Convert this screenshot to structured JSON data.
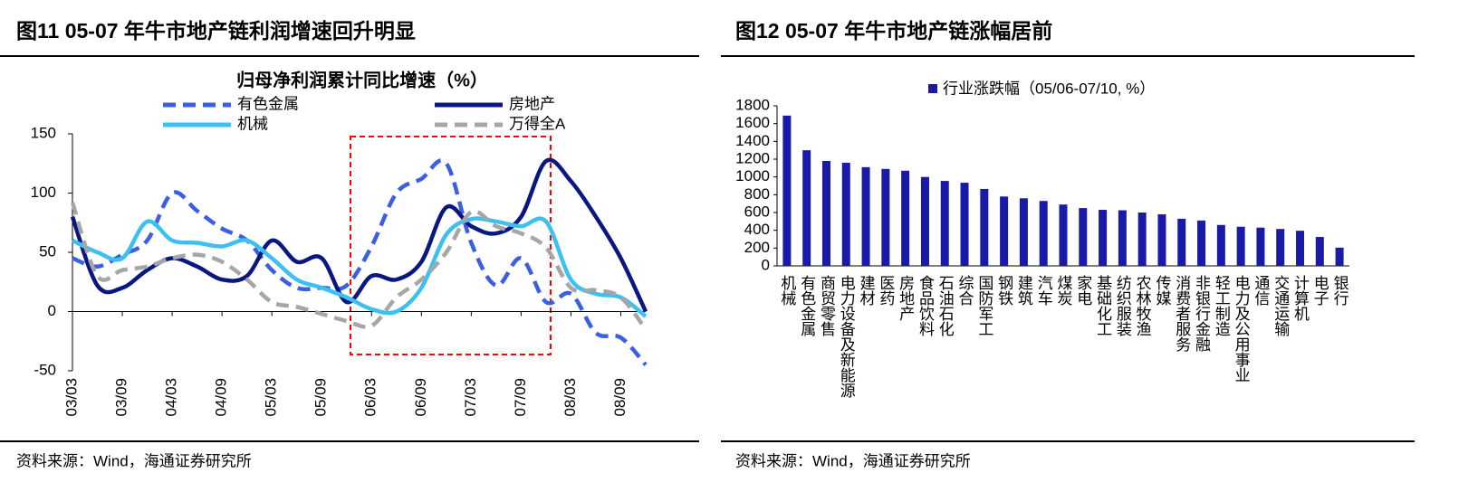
{
  "chart_data": [
    {
      "type": "line",
      "figure_title": "图11 05-07 年牛市地产链利润增速回升明显",
      "title": "归母净利润累计同比增速（%）",
      "source": "资料来源：Wind，海通证券研究所",
      "categories": [
        "03/03",
        null,
        "03/09",
        null,
        "04/03",
        null,
        "04/09",
        null,
        "05/03",
        null,
        "05/09",
        null,
        "06/03",
        null,
        "06/09",
        null,
        "07/03",
        null,
        "07/09",
        null,
        "08/03",
        null,
        "08/09",
        null
      ],
      "ylim": [
        -50,
        150
      ],
      "yticks": [
        -50,
        0,
        50,
        100,
        150
      ],
      "series": [
        {
          "name": "有色金属",
          "color": "#3a5fe0",
          "dashed": true,
          "values": [
            45,
            38,
            48,
            60,
            100,
            85,
            70,
            60,
            35,
            20,
            20,
            22,
            55,
            100,
            112,
            125,
            58,
            22,
            45,
            8,
            15,
            -18,
            -22,
            -45
          ]
        },
        {
          "name": "房地产",
          "color": "#0b1780",
          "dashed": false,
          "values": [
            80,
            22,
            20,
            35,
            45,
            38,
            27,
            30,
            60,
            42,
            45,
            8,
            30,
            27,
            42,
            88,
            72,
            66,
            80,
            127,
            110,
            80,
            45,
            0
          ]
        },
        {
          "name": "机械",
          "color": "#3cc0f0",
          "dashed": false,
          "values": [
            60,
            50,
            45,
            76,
            60,
            58,
            55,
            60,
            45,
            27,
            20,
            12,
            2,
            0,
            20,
            65,
            78,
            76,
            72,
            76,
            27,
            15,
            12,
            -4
          ]
        },
        {
          "name": "万得全A",
          "color": "#a6a6a6",
          "dashed": true,
          "values": [
            92,
            30,
            35,
            38,
            45,
            48,
            42,
            27,
            8,
            4,
            -2,
            -8,
            -12,
            12,
            27,
            50,
            84,
            72,
            66,
            54,
            20,
            18,
            12,
            -15
          ]
        }
      ]
    },
    {
      "type": "bar",
      "figure_title": "图12 05-07 年牛市地产链涨幅居前",
      "source": "资料来源：Wind，海通证券研究所",
      "categories": [
        "机械",
        "有色金属",
        "商贸零售",
        "电力设备及新能源",
        "建材",
        "医药",
        "房地产",
        "食品饮料",
        "石油石化",
        "综合",
        "国防军工",
        "钢铁",
        "建筑",
        "汽车",
        "煤炭",
        "家电",
        "基础化工",
        "纺织服装",
        "农林牧渔",
        "传媒",
        "消费者服务",
        "非银行金融",
        "轻工制造",
        "电力及公用事业",
        "通信",
        "交通运输",
        "计算机",
        "电子",
        "银行"
      ],
      "ylim": [
        0,
        1800
      ],
      "yticks": [
        0,
        200,
        400,
        600,
        800,
        1000,
        1200,
        1400,
        1600,
        1800
      ],
      "series": [
        {
          "name": "行业涨跌幅（05/06-07/10, %）",
          "color": "#1a1aa8",
          "values": [
            1690,
            1300,
            1180,
            1160,
            1110,
            1090,
            1070,
            1000,
            955,
            935,
            865,
            780,
            760,
            730,
            690,
            650,
            630,
            625,
            600,
            580,
            530,
            510,
            460,
            440,
            430,
            415,
            395,
            325,
            205
          ]
        }
      ]
    }
  ]
}
